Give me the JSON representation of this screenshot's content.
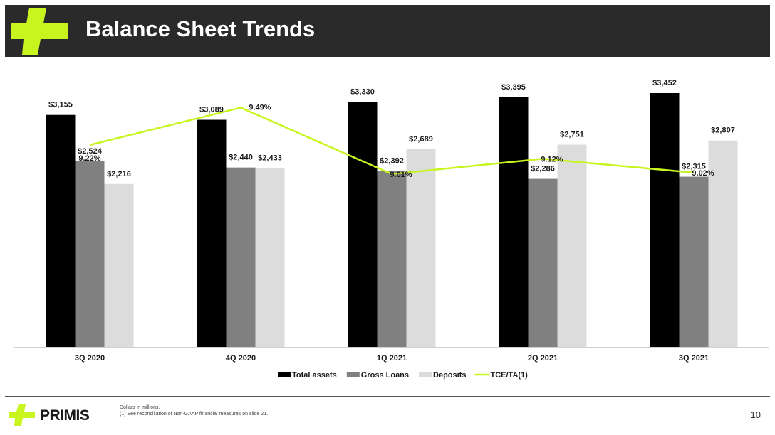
{
  "header": {
    "title": "Balance Sheet Trends"
  },
  "brand": {
    "name": "PRIMIS",
    "accent": "#c8f51e",
    "dark": "#1a1a1a"
  },
  "footer": {
    "note1": "Dollars in millions.",
    "note2": "(1) See reconciliation of Non-GAAP financial measures on slide 21.",
    "page": "10"
  },
  "chart_data": {
    "type": "bar",
    "categories": [
      "3Q 2020",
      "4Q 2020",
      "1Q 2021",
      "2Q 2021",
      "3Q 2021"
    ],
    "series": [
      {
        "name": "Total assets",
        "type": "bar",
        "color": "#000000",
        "values": [
          3155,
          3089,
          3330,
          3395,
          3452
        ],
        "labels": [
          "$3,155",
          "$3,089",
          "$3,330",
          "$3,395",
          "$3,452"
        ]
      },
      {
        "name": "Gross Loans",
        "type": "bar",
        "color": "#808080",
        "values": [
          2524,
          2440,
          2392,
          2286,
          2315
        ],
        "labels": [
          "$2,524",
          "$2,440",
          "$2,392",
          "$2,286",
          "$2,315"
        ]
      },
      {
        "name": "Deposits",
        "type": "bar",
        "color": "#dcdcdc",
        "values": [
          2216,
          2433,
          2689,
          2751,
          2807
        ],
        "labels": [
          "$2,216",
          "$2,433",
          "$2,689",
          "$2,751",
          "$2,807"
        ]
      },
      {
        "name": "TCE/TA(1)",
        "type": "line",
        "color": "#c8f51e",
        "values": [
          9.22,
          9.49,
          9.01,
          9.12,
          9.02
        ],
        "labels": [
          "9.22%",
          "9.49%",
          "9.01%",
          "9.12%",
          "9.02%"
        ]
      }
    ],
    "ylim": [
      0,
      3800
    ],
    "y2lim": [
      7.76,
      9.78
    ],
    "grid": false,
    "legend": "bottom"
  }
}
